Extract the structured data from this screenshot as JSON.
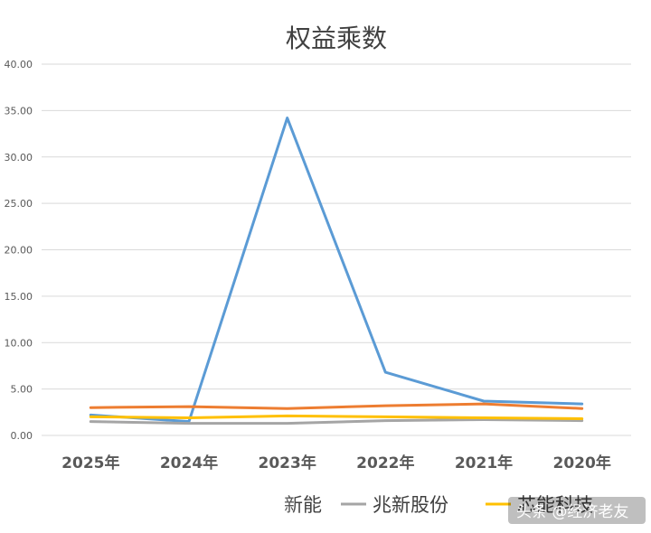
{
  "chart_data": {
    "type": "line",
    "title": "权益乘数",
    "xlabel": "",
    "ylabel": "",
    "categories": [
      "2025年",
      "2024年",
      "2023年",
      "2022年",
      "2021年",
      "2020年"
    ],
    "ylim": [
      0,
      40
    ],
    "yticks": [
      "0.00",
      "5.00",
      "10.00",
      "15.00",
      "20.00",
      "25.00",
      "30.00",
      "35.00",
      "40.00"
    ],
    "grid": true,
    "legend_position": "bottom",
    "series": [
      {
        "name": "",
        "color": "#5b9bd5",
        "values": [
          2.2,
          1.5,
          34.2,
          6.8,
          3.7,
          3.4
        ]
      },
      {
        "name": "",
        "color": "#ed7d31",
        "values": [
          3.0,
          3.1,
          2.9,
          3.2,
          3.4,
          2.9
        ]
      },
      {
        "name": "兆新股份",
        "color": "#a5a5a5",
        "values": [
          1.5,
          1.3,
          1.3,
          1.6,
          1.7,
          1.6
        ]
      },
      {
        "name": "芯能科技",
        "color": "#ffc000",
        "values": [
          2.0,
          1.9,
          2.1,
          2.0,
          1.9,
          1.8
        ]
      }
    ],
    "legend_partial_text": "新能"
  },
  "watermark": "头条 @经济老友"
}
